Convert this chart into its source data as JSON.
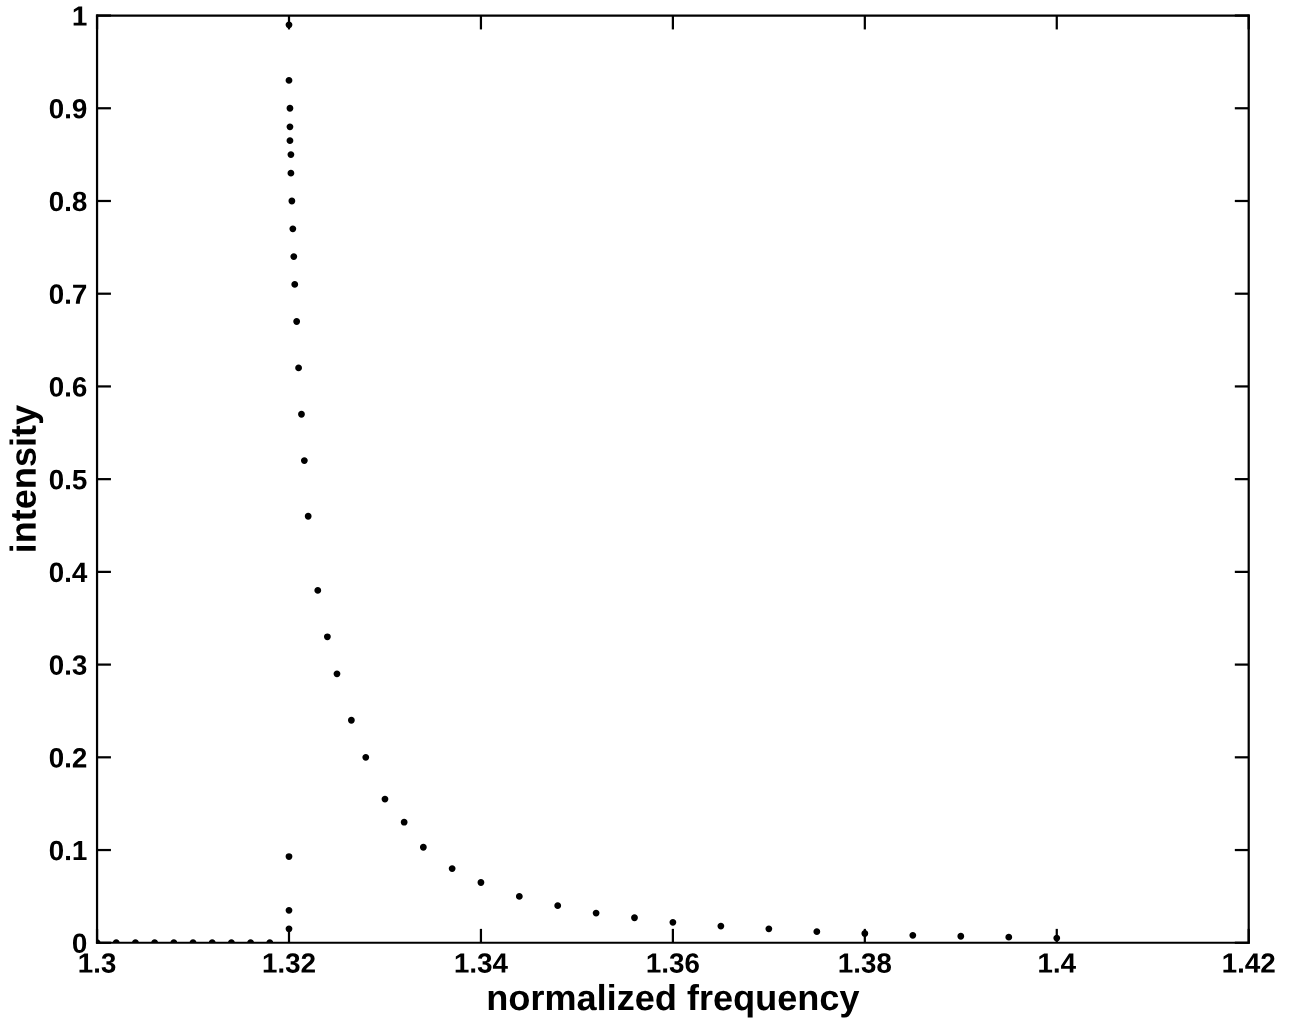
{
  "chart_data": {
    "type": "scatter",
    "xlabel": "normalized frequency",
    "ylabel": "intensity",
    "xlim": [
      1.3,
      1.42
    ],
    "ylim": [
      0,
      1
    ],
    "xticks": [
      1.3,
      1.32,
      1.34,
      1.36,
      1.38,
      1.4,
      1.42
    ],
    "yticks": [
      0,
      0.1,
      0.2,
      0.3,
      0.4,
      0.5,
      0.6,
      0.7,
      0.8,
      0.9,
      1
    ],
    "grid": false,
    "marker": "circle",
    "series": [
      {
        "color": "#000000",
        "x": [
          1.3,
          1.302,
          1.304,
          1.306,
          1.308,
          1.31,
          1.312,
          1.314,
          1.316,
          1.318,
          1.32,
          1.32,
          1.32,
          1.32,
          1.32,
          1.3201,
          1.3201,
          1.3201,
          1.3202,
          1.3202,
          1.3203,
          1.3204,
          1.3205,
          1.3206,
          1.3208,
          1.321,
          1.3213,
          1.3216,
          1.322,
          1.323,
          1.324,
          1.325,
          1.3265,
          1.328,
          1.33,
          1.332,
          1.334,
          1.337,
          1.34,
          1.344,
          1.348,
          1.352,
          1.356,
          1.36,
          1.365,
          1.37,
          1.375,
          1.38,
          1.385,
          1.39,
          1.395,
          1.4
        ],
        "values": [
          0,
          0,
          0,
          0,
          0,
          0,
          0,
          0,
          0,
          0,
          0.015,
          0.035,
          0.093,
          0.99,
          0.93,
          0.9,
          0.88,
          0.865,
          0.85,
          0.83,
          0.8,
          0.77,
          0.74,
          0.71,
          0.67,
          0.62,
          0.57,
          0.52,
          0.46,
          0.38,
          0.33,
          0.29,
          0.24,
          0.2,
          0.155,
          0.13,
          0.103,
          0.08,
          0.065,
          0.05,
          0.04,
          0.032,
          0.027,
          0.022,
          0.018,
          0.015,
          0.012,
          0.01,
          0.008,
          0.007,
          0.006,
          0.005
        ]
      }
    ]
  }
}
